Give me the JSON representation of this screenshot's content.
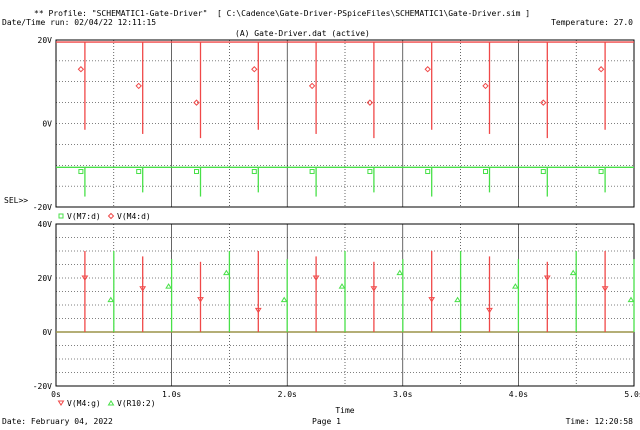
{
  "header": {
    "profile_line": "** Profile: \"SCHEMATIC1-Gate-Driver\"  [ C:\\Cadence\\Gate-Driver-PSpiceFiles\\SCHEMATIC1\\Gate-Driver.sim ]",
    "date_time_run": "Date/Time run: 02/04/22 12:11:15",
    "temperature": "Temperature: 27.0"
  },
  "plot_title": "(A) Gate-Driver.dat (active)",
  "footer": {
    "date": "Date: February 04, 2022",
    "page": "Page 1",
    "time": "Time: 12:20:58"
  },
  "colors": {
    "red": "#f04848",
    "green": "#48e048",
    "grid": "#000000"
  },
  "chart_data": [
    {
      "type": "line",
      "panel": "top",
      "sel_marker": "SEL>>",
      "xlim": [
        0,
        5.0
      ],
      "ylim": [
        -20,
        20
      ],
      "yticks": [
        "20V",
        "0V",
        "-20V"
      ],
      "legend": [
        {
          "marker": "square",
          "color": "#48e048",
          "label": "V(M7:d)"
        },
        {
          "marker": "diamond",
          "color": "#f04848",
          "label": "V(M4:d)"
        }
      ],
      "pulses": [
        0.25,
        0.75,
        1.25,
        1.75,
        2.25,
        2.75,
        3.25,
        3.75,
        4.25,
        4.75
      ],
      "series": [
        {
          "name": "V(M4:d)",
          "high": 19.5,
          "low": -1.5,
          "color": "#f04848"
        },
        {
          "name": "V(M7:d)",
          "high": -10.5,
          "low": -17.5,
          "color": "#48e048"
        }
      ]
    },
    {
      "type": "line",
      "panel": "bottom",
      "xlim": [
        0,
        5.0
      ],
      "ylim": [
        -20,
        40
      ],
      "yticks": [
        "40V",
        "20V",
        "0V",
        "-20V"
      ],
      "xticks": [
        "0s",
        "1.0s",
        "2.0s",
        "3.0s",
        "4.0s",
        "5.0s"
      ],
      "xlabel": "Time",
      "legend": [
        {
          "marker": "triangle-down",
          "color": "#f04848",
          "label": "V(M4:g)"
        },
        {
          "marker": "triangle-up",
          "color": "#48e048",
          "label": "V(R10:2)"
        }
      ],
      "series": [
        {
          "name": "V(M4:g)",
          "pulses": [
            0.25,
            0.75,
            1.25,
            1.75,
            2.25,
            2.75,
            3.25,
            3.75,
            4.25,
            4.75
          ],
          "peak": 30,
          "color": "#f04848"
        },
        {
          "name": "V(R10:2)",
          "pulses": [
            0.5,
            1.0,
            1.5,
            2.0,
            2.5,
            3.0,
            3.5,
            4.0,
            4.5,
            5.0
          ],
          "peak": 30,
          "color": "#48e048"
        }
      ]
    }
  ]
}
